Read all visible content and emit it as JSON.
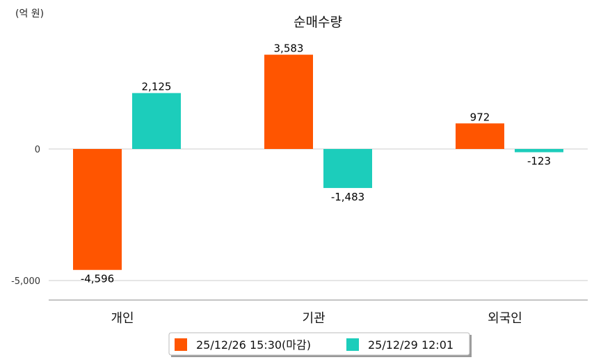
{
  "chart_data": {
    "type": "bar",
    "title": "순매수량",
    "unit_label": "(억 원)",
    "xlabel": "",
    "ylabel": "",
    "categories": [
      "개인",
      "기관",
      "외국인"
    ],
    "series": [
      {
        "name": "25/12/26 15:30(마감)",
        "color": "#ff5500",
        "values": [
          -4596,
          3583,
          972
        ],
        "labels": [
          "-4,596",
          "3,583",
          "972"
        ]
      },
      {
        "name": "25/12/29 12:01",
        "color": "#1ccdbb",
        "values": [
          2125,
          -1483,
          -123
        ],
        "labels": [
          "2,125",
          "-1,483",
          "-123"
        ]
      }
    ],
    "yticks": [
      {
        "value": 0,
        "label": "0"
      },
      {
        "value": -5000,
        "label": "-5,000"
      }
    ],
    "grid": true,
    "legend": "bottom"
  }
}
